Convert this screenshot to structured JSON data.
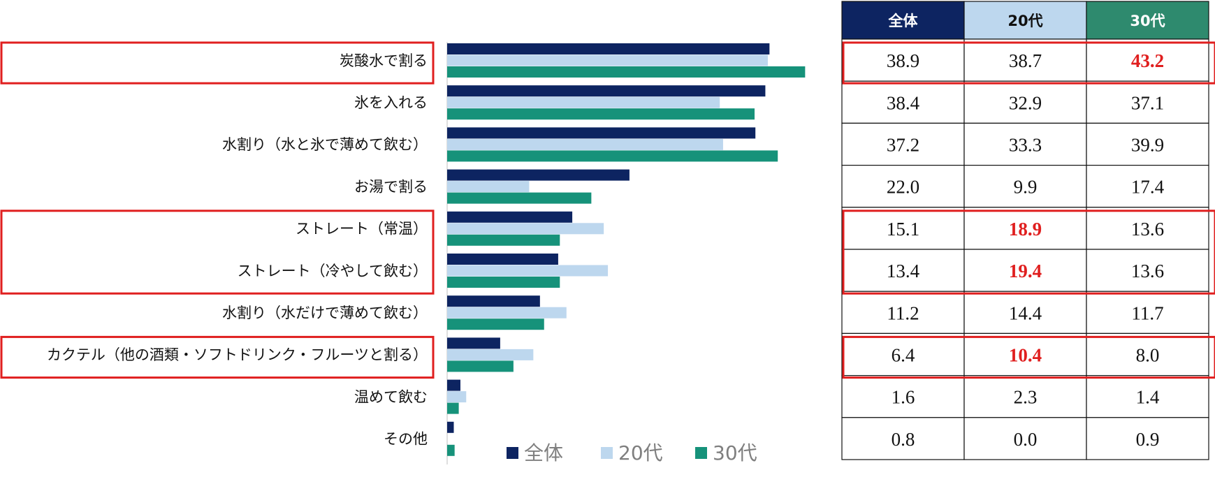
{
  "chart_data": {
    "type": "bar",
    "orientation": "horizontal",
    "categories": [
      "炭酸水で割る",
      "氷を入れる",
      "水割り（水と氷で薄めて飲む）",
      "お湯で割る",
      "ストレート（常温）",
      "ストレート（冷やして飲む）",
      "水割り（水だけで薄めて飲む）",
      "カクテル（他の酒類・ソフトドリンク・フルーツと割る）",
      "温めて飲む",
      "その他"
    ],
    "series": [
      {
        "name": "全体",
        "color": "#0d2461",
        "values": [
          38.9,
          38.4,
          37.2,
          22.0,
          15.1,
          13.4,
          11.2,
          6.4,
          1.6,
          0.8
        ]
      },
      {
        "name": "20代",
        "color": "#bdd7ee",
        "values": [
          38.7,
          32.9,
          33.3,
          9.9,
          18.9,
          19.4,
          14.4,
          10.4,
          2.3,
          0.0
        ]
      },
      {
        "name": "30代",
        "color": "#16927a",
        "values": [
          43.2,
          37.1,
          39.9,
          17.4,
          13.6,
          13.6,
          11.7,
          8.0,
          1.4,
          0.9
        ]
      }
    ],
    "xlim": [
      0,
      50
    ],
    "legend_position": "bottom",
    "table": {
      "headers": [
        "全体",
        "20代",
        "30代"
      ],
      "header_colors": [
        "#0d2461",
        "#bdd7ee",
        "#2e8a6e"
      ],
      "header_text_colors": [
        "#ffffff",
        "#111111",
        "#ffffff"
      ],
      "rows": [
        [
          "38.9",
          "38.7",
          "43.2"
        ],
        [
          "38.4",
          "32.9",
          "37.1"
        ],
        [
          "37.2",
          "33.3",
          "39.9"
        ],
        [
          "22.0",
          "9.9",
          "17.4"
        ],
        [
          "15.1",
          "18.9",
          "13.6"
        ],
        [
          "13.4",
          "19.4",
          "13.6"
        ],
        [
          "11.2",
          "14.4",
          "11.7"
        ],
        [
          "6.4",
          "10.4",
          "8.0"
        ],
        [
          "1.6",
          "2.3",
          "1.4"
        ],
        [
          "0.8",
          "0.0",
          "0.9"
        ]
      ],
      "highlighted_cells": [
        [
          0,
          2
        ],
        [
          4,
          1
        ],
        [
          5,
          1
        ],
        [
          7,
          1
        ]
      ],
      "highlight_color": "#e01f1f"
    },
    "highlight_groups": [
      [
        0,
        0
      ],
      [
        4,
        5
      ],
      [
        7,
        7
      ]
    ]
  }
}
